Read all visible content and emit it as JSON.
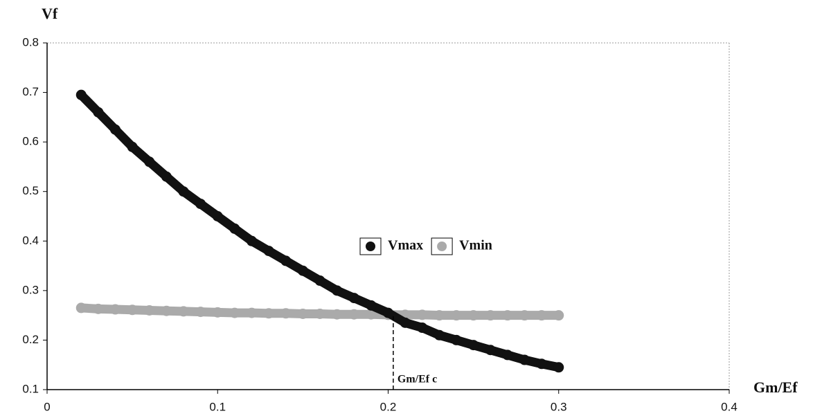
{
  "chart_data": {
    "type": "scatter",
    "ylabel": "Vf",
    "xlabel": "Gm/Ef",
    "xlim": [
      0,
      0.4
    ],
    "xticks": [
      0,
      0.1,
      0.2,
      0.3,
      0.4
    ],
    "ylim": [
      0.1,
      0.8
    ],
    "yticks": [
      0.1,
      0.2,
      0.3,
      0.4,
      0.5,
      0.6,
      0.7,
      0.8
    ],
    "legend": "center",
    "x": [
      0.02,
      0.03,
      0.04,
      0.05,
      0.06,
      0.07,
      0.08,
      0.09,
      0.1,
      0.11,
      0.12,
      0.13,
      0.14,
      0.15,
      0.16,
      0.17,
      0.18,
      0.19,
      0.2,
      0.21,
      0.22,
      0.23,
      0.24,
      0.25,
      0.26,
      0.27,
      0.28,
      0.29,
      0.3
    ],
    "series": [
      {
        "name": "Vmax",
        "color": "#111111",
        "values": [
          0.695,
          0.66,
          0.625,
          0.59,
          0.56,
          0.53,
          0.5,
          0.475,
          0.45,
          0.425,
          0.4,
          0.38,
          0.36,
          0.34,
          0.32,
          0.3,
          0.285,
          0.27,
          0.255,
          0.235,
          0.225,
          0.21,
          0.2,
          0.19,
          0.18,
          0.17,
          0.16,
          0.152,
          0.145
        ]
      },
      {
        "name": "Vmin",
        "color": "#aaaaaa",
        "values": [
          0.265,
          0.263,
          0.262,
          0.261,
          0.26,
          0.259,
          0.258,
          0.257,
          0.256,
          0.255,
          0.255,
          0.254,
          0.254,
          0.253,
          0.253,
          0.252,
          0.252,
          0.252,
          0.251,
          0.251,
          0.251,
          0.25,
          0.25,
          0.25,
          0.25,
          0.25,
          0.25,
          0.25,
          0.25
        ]
      }
    ],
    "annotation": {
      "text": "Gm/Ef c",
      "x": 0.203,
      "y": 0.25
    }
  }
}
